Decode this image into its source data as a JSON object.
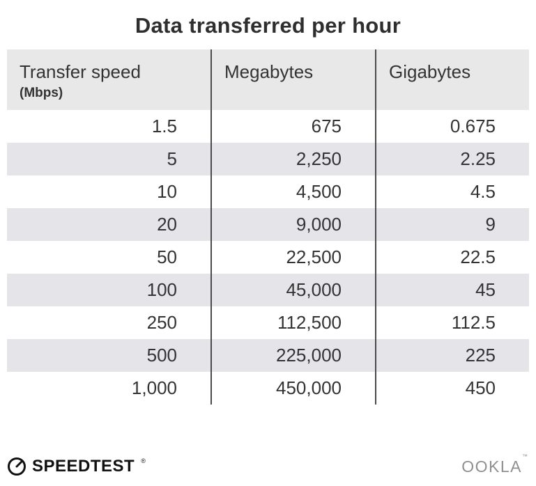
{
  "title": "Data transferred per hour",
  "table": {
    "headers": [
      {
        "line1": "Transfer speed",
        "line2": "(Mbps)"
      },
      {
        "line1": "Megabytes"
      },
      {
        "line1": "Gigabytes"
      }
    ],
    "rows": [
      [
        "1.5",
        "675",
        "0.675"
      ],
      [
        "5",
        "2,250",
        "2.25"
      ],
      [
        "10",
        "4,500",
        "4.5"
      ],
      [
        "20",
        "9,000",
        "9"
      ],
      [
        "50",
        "22,500",
        "22.5"
      ],
      [
        "100",
        "45,000",
        "45"
      ],
      [
        "250",
        "112,500",
        "112.5"
      ],
      [
        "500",
        "225,000",
        "225"
      ],
      [
        "1,000",
        "450,000",
        "450"
      ]
    ]
  },
  "footer": {
    "speedtest_label": "SPEEDTEST",
    "speedtest_mark": "®",
    "ookla_label": "OOKLA",
    "ookla_mark": "™"
  },
  "colors": {
    "header_bg": "#e8e8e8",
    "row_alt_bg": "#e5e4e9",
    "divider": "#4a4a4a",
    "title_text": "#2e2e2e",
    "body_text": "#333333",
    "ookla_gray": "#8f8f8f"
  },
  "chart_data": {
    "type": "table",
    "title": "Data transferred per hour",
    "columns": [
      "Transfer speed (Mbps)",
      "Megabytes",
      "Gigabytes"
    ],
    "rows": [
      [
        1.5,
        675,
        0.675
      ],
      [
        5,
        2250,
        2.25
      ],
      [
        10,
        4500,
        4.5
      ],
      [
        20,
        9000,
        9
      ],
      [
        50,
        22500,
        22.5
      ],
      [
        100,
        45000,
        45
      ],
      [
        250,
        112500,
        112.5
      ],
      [
        500,
        225000,
        225
      ],
      [
        1000,
        450000,
        450
      ]
    ]
  }
}
